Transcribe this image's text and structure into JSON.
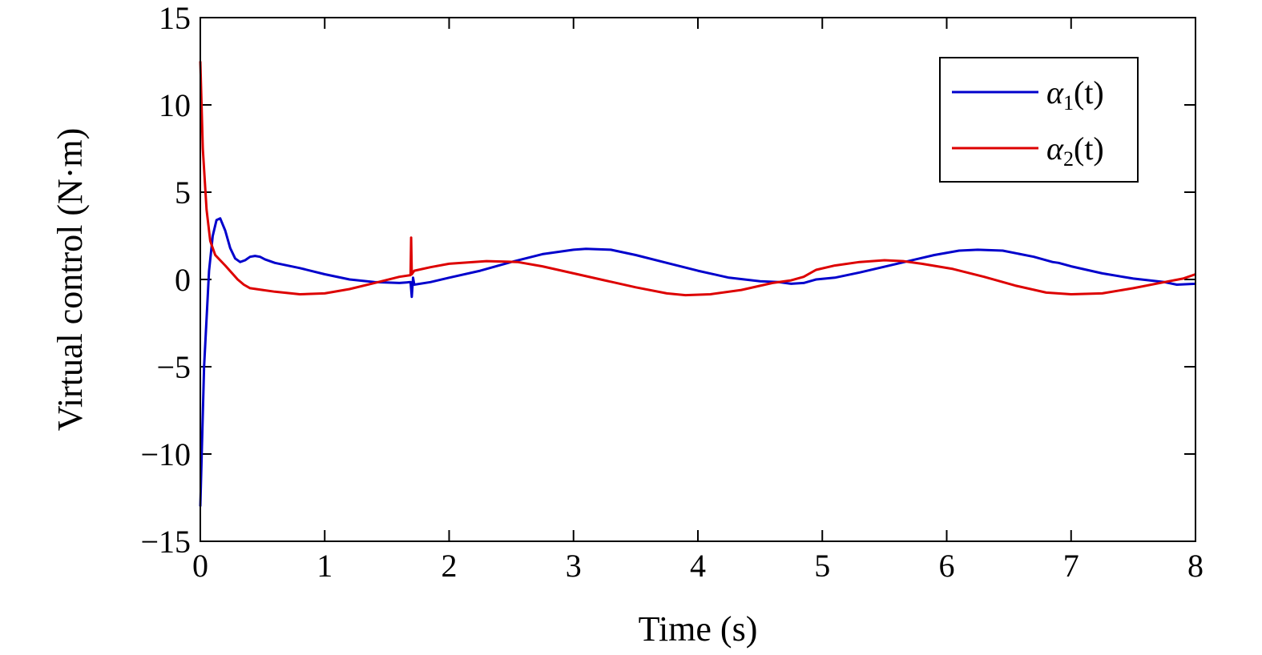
{
  "chart_data": {
    "type": "line",
    "title": "",
    "xlabel": "Time (s)",
    "ylabel": "Virtual control (N·m)",
    "xlim": [
      0,
      8
    ],
    "ylim": [
      -15,
      15
    ],
    "xticks": [
      "0",
      "1",
      "2",
      "3",
      "4",
      "5",
      "6",
      "7",
      "8"
    ],
    "yticks": [
      "15",
      "10",
      "5",
      "0",
      "−5",
      "−10",
      "−15"
    ],
    "grid": false,
    "legend_position": "top-right",
    "series": [
      {
        "name": "α1(t)",
        "symbol": "α",
        "subscript": "1",
        "arg": "(t)",
        "color": "#0000cc",
        "points": [
          [
            0,
            -13
          ],
          [
            0.03,
            -5
          ],
          [
            0.07,
            0.5
          ],
          [
            0.1,
            2.5
          ],
          [
            0.13,
            3.4
          ],
          [
            0.16,
            3.5
          ],
          [
            0.2,
            2.8
          ],
          [
            0.24,
            1.8
          ],
          [
            0.28,
            1.2
          ],
          [
            0.32,
            1.0
          ],
          [
            0.36,
            1.1
          ],
          [
            0.4,
            1.3
          ],
          [
            0.44,
            1.35
          ],
          [
            0.48,
            1.3
          ],
          [
            0.52,
            1.15
          ],
          [
            0.6,
            0.95
          ],
          [
            0.8,
            0.65
          ],
          [
            1.0,
            0.3
          ],
          [
            1.2,
            0.0
          ],
          [
            1.4,
            -0.15
          ],
          [
            1.6,
            -0.2
          ],
          [
            1.69,
            -0.15
          ],
          [
            1.7,
            -1.0
          ],
          [
            1.71,
            0.1
          ],
          [
            1.72,
            -0.3
          ],
          [
            1.85,
            -0.15
          ],
          [
            2.0,
            0.1
          ],
          [
            2.25,
            0.5
          ],
          [
            2.5,
            1.0
          ],
          [
            2.75,
            1.45
          ],
          [
            3.0,
            1.7
          ],
          [
            3.1,
            1.75
          ],
          [
            3.3,
            1.7
          ],
          [
            3.5,
            1.4
          ],
          [
            3.75,
            0.95
          ],
          [
            4.0,
            0.5
          ],
          [
            4.25,
            0.1
          ],
          [
            4.5,
            -0.1
          ],
          [
            4.65,
            -0.15
          ],
          [
            4.75,
            -0.25
          ],
          [
            4.85,
            -0.2
          ],
          [
            4.95,
            0.0
          ],
          [
            5.1,
            0.1
          ],
          [
            5.3,
            0.4
          ],
          [
            5.6,
            0.9
          ],
          [
            5.9,
            1.4
          ],
          [
            6.1,
            1.65
          ],
          [
            6.25,
            1.7
          ],
          [
            6.45,
            1.65
          ],
          [
            6.7,
            1.3
          ],
          [
            6.85,
            1.0
          ],
          [
            6.9,
            0.95
          ],
          [
            7.0,
            0.75
          ],
          [
            7.25,
            0.35
          ],
          [
            7.5,
            0.05
          ],
          [
            7.75,
            -0.15
          ],
          [
            7.85,
            -0.3
          ],
          [
            8.0,
            -0.25
          ]
        ]
      },
      {
        "name": "α2(t)",
        "symbol": "α",
        "subscript": "2",
        "arg": "(t)",
        "color": "#dd0000",
        "points": [
          [
            0,
            12.5
          ],
          [
            0.02,
            7.5
          ],
          [
            0.05,
            4.0
          ],
          [
            0.08,
            2.2
          ],
          [
            0.12,
            1.4
          ],
          [
            0.16,
            1.1
          ],
          [
            0.2,
            0.8
          ],
          [
            0.25,
            0.4
          ],
          [
            0.3,
            0.0
          ],
          [
            0.35,
            -0.3
          ],
          [
            0.4,
            -0.5
          ],
          [
            0.5,
            -0.6
          ],
          [
            0.6,
            -0.7
          ],
          [
            0.8,
            -0.85
          ],
          [
            1.0,
            -0.8
          ],
          [
            1.2,
            -0.55
          ],
          [
            1.4,
            -0.2
          ],
          [
            1.6,
            0.15
          ],
          [
            1.69,
            0.25
          ],
          [
            1.695,
            2.4
          ],
          [
            1.7,
            0.3
          ],
          [
            1.72,
            0.5
          ],
          [
            1.85,
            0.7
          ],
          [
            2.0,
            0.9
          ],
          [
            2.3,
            1.05
          ],
          [
            2.55,
            1.0
          ],
          [
            2.75,
            0.75
          ],
          [
            3.0,
            0.35
          ],
          [
            3.25,
            -0.05
          ],
          [
            3.5,
            -0.45
          ],
          [
            3.75,
            -0.8
          ],
          [
            3.9,
            -0.9
          ],
          [
            4.1,
            -0.85
          ],
          [
            4.35,
            -0.6
          ],
          [
            4.6,
            -0.2
          ],
          [
            4.75,
            -0.05
          ],
          [
            4.85,
            0.15
          ],
          [
            4.95,
            0.55
          ],
          [
            5.1,
            0.8
          ],
          [
            5.3,
            1.0
          ],
          [
            5.5,
            1.1
          ],
          [
            5.65,
            1.05
          ],
          [
            5.8,
            0.9
          ],
          [
            6.05,
            0.6
          ],
          [
            6.3,
            0.15
          ],
          [
            6.55,
            -0.35
          ],
          [
            6.8,
            -0.75
          ],
          [
            7.0,
            -0.85
          ],
          [
            7.25,
            -0.8
          ],
          [
            7.5,
            -0.5
          ],
          [
            7.75,
            -0.15
          ],
          [
            7.9,
            0.05
          ],
          [
            8.0,
            0.3
          ]
        ]
      }
    ]
  }
}
